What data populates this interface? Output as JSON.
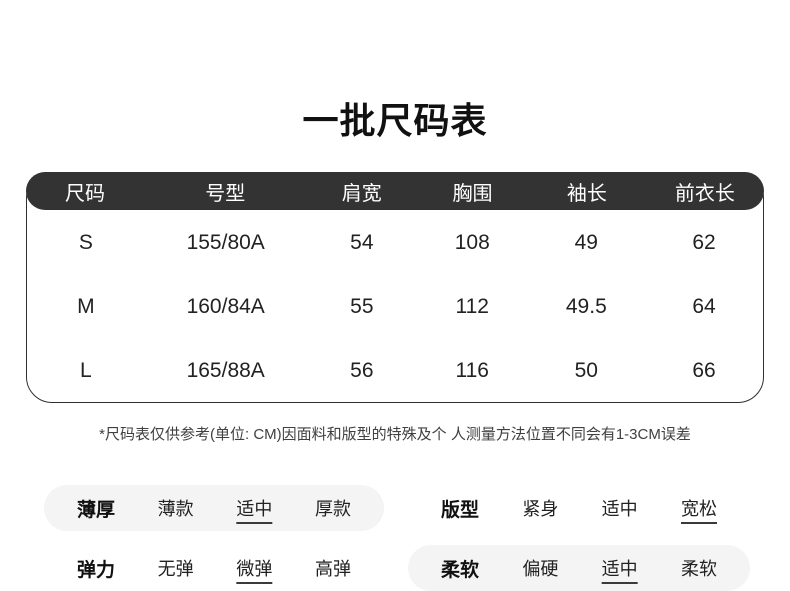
{
  "page": {
    "title": "一批尺码表"
  },
  "size_table": {
    "headers": [
      "尺码",
      "号型",
      "肩宽",
      "胸围",
      "袖长",
      "前衣长"
    ],
    "rows": [
      [
        "S",
        "155/80A",
        "54",
        "108",
        "49",
        "62"
      ],
      [
        "M",
        "160/84A",
        "55",
        "112",
        "49.5",
        "64"
      ],
      [
        "L",
        "165/88A",
        "56",
        "116",
        "50",
        "66"
      ]
    ],
    "unit": "CM",
    "note": "*尺码表仅供参考(单位: CM)因面料和版型的特殊及个 人测量方法位置不同会有1-3CM误差"
  },
  "attributes": {
    "groups": [
      {
        "label": "薄厚",
        "options": [
          "薄款",
          "适中",
          "厚款"
        ],
        "selected": "适中",
        "highlighted": true
      },
      {
        "label": "版型",
        "options": [
          "紧身",
          "适中",
          "宽松"
        ],
        "selected": "宽松",
        "highlighted": false
      },
      {
        "label": "弹力",
        "options": [
          "无弹",
          "微弹",
          "高弹"
        ],
        "selected": "微弹",
        "highlighted": false
      },
      {
        "label": "柔软",
        "options": [
          "偏硬",
          "适中",
          "柔软"
        ],
        "selected": "适中",
        "highlighted": true
      }
    ]
  },
  "colors": {
    "header_bg": "#333333",
    "header_text": "#ffffff",
    "pill_bg": "#f4f4f4",
    "underline": "#3a3a3a",
    "body_text": "#222222"
  }
}
